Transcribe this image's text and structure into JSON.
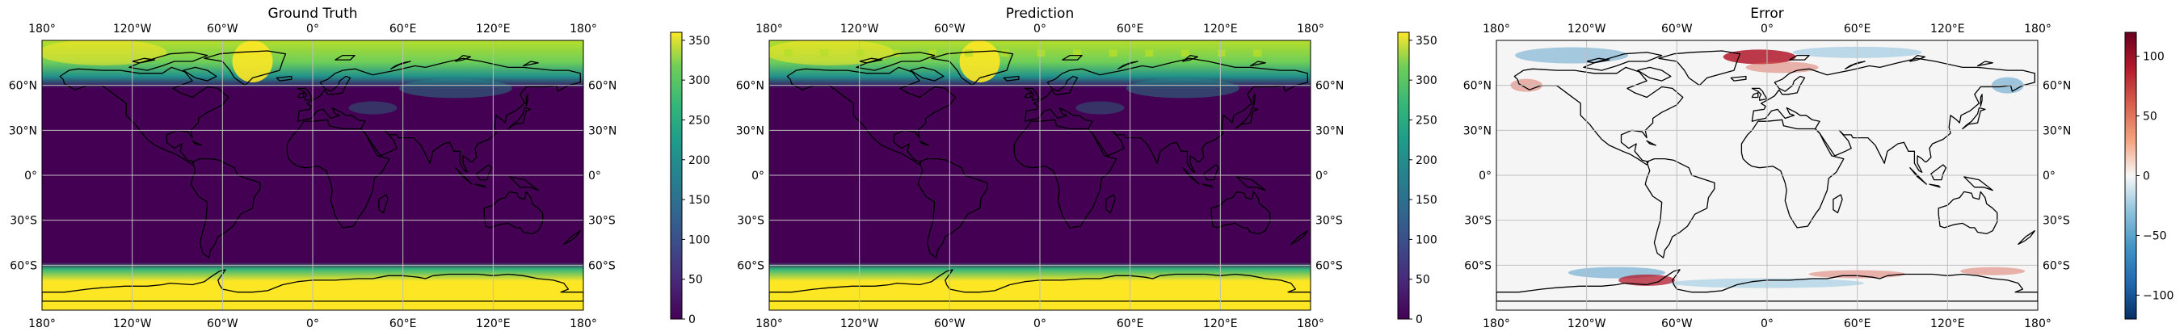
{
  "figure": {
    "panels": [
      {
        "id": "ground-truth",
        "title": "Ground Truth",
        "colormap": "viridis",
        "colorbar": {
          "min": 0,
          "max": 360,
          "ticks": [
            "0",
            "50",
            "100",
            "150",
            "200",
            "250",
            "300",
            "350"
          ]
        }
      },
      {
        "id": "prediction",
        "title": "Prediction",
        "colormap": "viridis",
        "colorbar": {
          "min": 0,
          "max": 360,
          "ticks": [
            "0",
            "50",
            "100",
            "150",
            "200",
            "250",
            "300",
            "350"
          ]
        }
      },
      {
        "id": "error",
        "title": "Error",
        "colormap": "RdBu_r",
        "colorbar": {
          "min": -120,
          "max": 120,
          "ticks": [
            "−100",
            "−50",
            "0",
            "50",
            "100"
          ]
        }
      }
    ],
    "lon_ticks": [
      "180°",
      "120°W",
      "60°W",
      "0°",
      "60°E",
      "120°E",
      "180°"
    ],
    "lat_ticks": [
      "60°N",
      "30°N",
      "0°",
      "30°S",
      "60°S"
    ],
    "colors": {
      "viridis_low": "#440154",
      "viridis_mid": "#21918c",
      "viridis_high": "#fde725",
      "error_neutral": "#f5f5f5",
      "error_positive": "#b2182b",
      "error_negative": "#2166ac",
      "coastline": "#000000",
      "gridline": "#bfbfbf"
    }
  }
}
